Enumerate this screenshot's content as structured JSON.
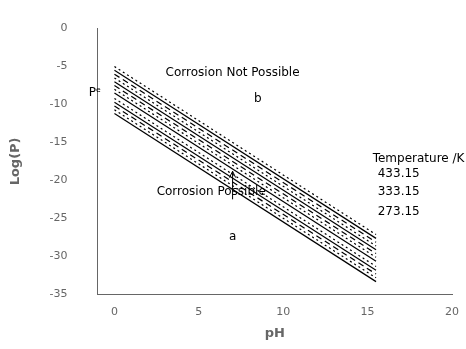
{
  "chart_data": {
    "type": "line",
    "xlabel": "pH",
    "ylabel": "Log(P)",
    "color": "#000000",
    "x": [
      0,
      15.5
    ],
    "series": [
      {
        "line_style": "dotted",
        "values": [
          -5.0,
          -27.1433
        ]
      },
      {
        "line_style": "solid",
        "values": [
          -5.5,
          -27.6433
        ]
      },
      {
        "line_style": "dashed",
        "values": [
          -6.0,
          -28.1433
        ]
      },
      {
        "line_style": "dotted",
        "values": [
          -6.5,
          -28.6433
        ]
      },
      {
        "line_style": "solid",
        "values": [
          -7.0,
          -29.1433
        ]
      },
      {
        "line_style": "dashed",
        "values": [
          -7.5,
          -29.6433
        ]
      },
      {
        "line_style": "dotted",
        "values": [
          -8.0,
          -30.1433
        ]
      },
      {
        "line_style": "solid",
        "values": [
          -8.5,
          -30.6433
        ]
      },
      {
        "line_style": "dotted",
        "values": [
          -9.2,
          -31.3433
        ]
      },
      {
        "line_style": "solid",
        "values": [
          -9.7,
          -31.8433
        ]
      },
      {
        "line_style": "dashed",
        "values": [
          -10.2,
          -32.3433
        ]
      },
      {
        "line_style": "dotted",
        "values": [
          -10.7,
          -32.8433
        ]
      },
      {
        "line_style": "solid",
        "values": [
          -11.2,
          -33.3433
        ]
      }
    ],
    "xlim": [
      -1,
      20
    ],
    "xticks": [
      0,
      5,
      10,
      15,
      20
    ],
    "ylim": [
      -35,
      0
    ],
    "yticks": [
      0,
      -5,
      -10,
      -15,
      -20,
      -25,
      -30,
      -35
    ],
    "grid": false,
    "annotations": [
      {
        "text": "Pᵉ",
        "x": -0.8,
        "y": -8.5,
        "align": "right"
      },
      {
        "text": "b",
        "x": 8.5,
        "y": -9.2,
        "align": "center"
      },
      {
        "text": "a",
        "x": 7.0,
        "y": -27.5,
        "align": "center",
        "arrow_from": [
          7.0,
          -22.5
        ],
        "arrow_to": [
          7.0,
          -18.8
        ]
      },
      {
        "text": "Corrosion Not Possible",
        "x": 7.0,
        "y": -5.8,
        "align": "center"
      },
      {
        "text": "Corrosion Possible",
        "x": 2.5,
        "y": -21.5,
        "align": "left"
      },
      {
        "text": "Temperature /K",
        "x": 15.3,
        "y": -17.2,
        "align": "left"
      },
      {
        "text": "433.15",
        "x": 15.6,
        "y": -19.2,
        "align": "left"
      },
      {
        "text": "333.15",
        "x": 15.6,
        "y": -21.5,
        "align": "left"
      },
      {
        "text": "273.15",
        "x": 15.6,
        "y": -24.2,
        "align": "left"
      }
    ]
  }
}
